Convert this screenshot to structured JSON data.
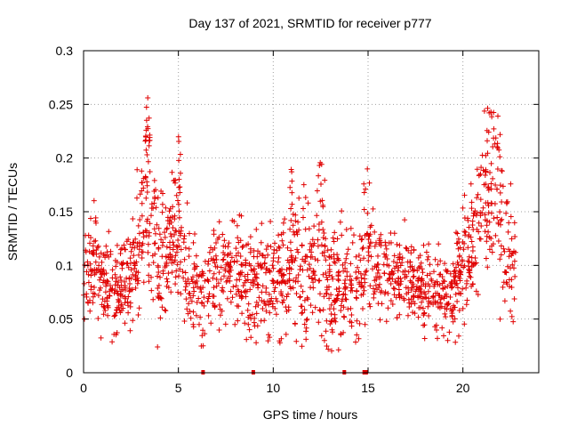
{
  "chart_data": {
    "type": "scatter",
    "title": "Day 137 of 2021, SRMTID for receiver p777",
    "xlabel": "GPS time / hours",
    "ylabel": "SRMTID / TECUs",
    "xlim": [
      0,
      24
    ],
    "ylim": [
      0,
      0.3
    ],
    "xticks": [
      0,
      5,
      10,
      15,
      20
    ],
    "xtick_labels": [
      "0",
      "5",
      "10",
      "15",
      "20"
    ],
    "yticks": [
      0,
      0.05,
      0.1,
      0.15,
      0.2,
      0.25,
      0.3
    ],
    "ytick_labels": [
      "0",
      "0.05",
      "0.1",
      "0.15",
      "0.2",
      "0.25",
      "0.3"
    ],
    "grid": true,
    "marker": "+",
    "color": "#e00000",
    "generated_point_count": 1700,
    "zero_value_markers_x": [
      6.3,
      8.95,
      13.75,
      14.8,
      14.9
    ],
    "envelope_points": [
      {
        "x": 0.0,
        "y": 0.095,
        "spread": 0.03
      },
      {
        "x": 0.5,
        "y": 0.1,
        "spread": 0.035
      },
      {
        "x": 1.0,
        "y": 0.08,
        "spread": 0.025
      },
      {
        "x": 1.5,
        "y": 0.075,
        "spread": 0.025
      },
      {
        "x": 2.0,
        "y": 0.085,
        "spread": 0.025
      },
      {
        "x": 2.5,
        "y": 0.09,
        "spread": 0.03
      },
      {
        "x": 3.0,
        "y": 0.12,
        "spread": 0.045
      },
      {
        "x": 3.3,
        "y": 0.17,
        "spread": 0.05
      },
      {
        "x": 3.6,
        "y": 0.14,
        "spread": 0.045
      },
      {
        "x": 4.0,
        "y": 0.1,
        "spread": 0.04
      },
      {
        "x": 4.5,
        "y": 0.11,
        "spread": 0.04
      },
      {
        "x": 5.0,
        "y": 0.14,
        "spread": 0.045
      },
      {
        "x": 5.5,
        "y": 0.09,
        "spread": 0.035
      },
      {
        "x": 6.0,
        "y": 0.08,
        "spread": 0.03
      },
      {
        "x": 7.0,
        "y": 0.09,
        "spread": 0.03
      },
      {
        "x": 8.0,
        "y": 0.095,
        "spread": 0.035
      },
      {
        "x": 9.0,
        "y": 0.085,
        "spread": 0.035
      },
      {
        "x": 10.0,
        "y": 0.08,
        "spread": 0.035
      },
      {
        "x": 11.0,
        "y": 0.1,
        "spread": 0.04
      },
      {
        "x": 12.0,
        "y": 0.1,
        "spread": 0.04
      },
      {
        "x": 12.6,
        "y": 0.12,
        "spread": 0.045
      },
      {
        "x": 13.0,
        "y": 0.07,
        "spread": 0.035
      },
      {
        "x": 13.5,
        "y": 0.09,
        "spread": 0.035
      },
      {
        "x": 14.0,
        "y": 0.09,
        "spread": 0.04
      },
      {
        "x": 14.5,
        "y": 0.08,
        "spread": 0.035
      },
      {
        "x": 15.0,
        "y": 0.12,
        "spread": 0.04
      },
      {
        "x": 15.5,
        "y": 0.1,
        "spread": 0.03
      },
      {
        "x": 16.0,
        "y": 0.09,
        "spread": 0.025
      },
      {
        "x": 17.0,
        "y": 0.085,
        "spread": 0.025
      },
      {
        "x": 18.0,
        "y": 0.08,
        "spread": 0.025
      },
      {
        "x": 19.0,
        "y": 0.07,
        "spread": 0.025
      },
      {
        "x": 19.5,
        "y": 0.075,
        "spread": 0.025
      },
      {
        "x": 20.0,
        "y": 0.1,
        "spread": 0.04
      },
      {
        "x": 20.5,
        "y": 0.12,
        "spread": 0.04
      },
      {
        "x": 21.0,
        "y": 0.14,
        "spread": 0.05
      },
      {
        "x": 21.5,
        "y": 0.18,
        "spread": 0.055
      },
      {
        "x": 22.0,
        "y": 0.13,
        "spread": 0.045
      },
      {
        "x": 22.5,
        "y": 0.11,
        "spread": 0.04
      },
      {
        "x": 22.8,
        "y": 0.1,
        "spread": 0.03
      }
    ],
    "peaks": [
      {
        "x": 3.3,
        "y": 0.26
      },
      {
        "x": 3.4,
        "y": 0.24
      },
      {
        "x": 4.9,
        "y": 0.225
      },
      {
        "x": 21.6,
        "y": 0.26
      },
      {
        "x": 21.4,
        "y": 0.25
      },
      {
        "x": 21.8,
        "y": 0.24
      },
      {
        "x": 12.5,
        "y": 0.2
      },
      {
        "x": 11.0,
        "y": 0.19
      },
      {
        "x": 14.85,
        "y": 0.19
      }
    ],
    "troughs": [
      {
        "x": 3.9,
        "y": 0.024
      },
      {
        "x": 12.9,
        "y": 0.022
      },
      {
        "x": 12.7,
        "y": 0.03
      },
      {
        "x": 9.1,
        "y": 0.028
      },
      {
        "x": 19.2,
        "y": 0.03
      },
      {
        "x": 6.3,
        "y": 0.025
      }
    ]
  }
}
